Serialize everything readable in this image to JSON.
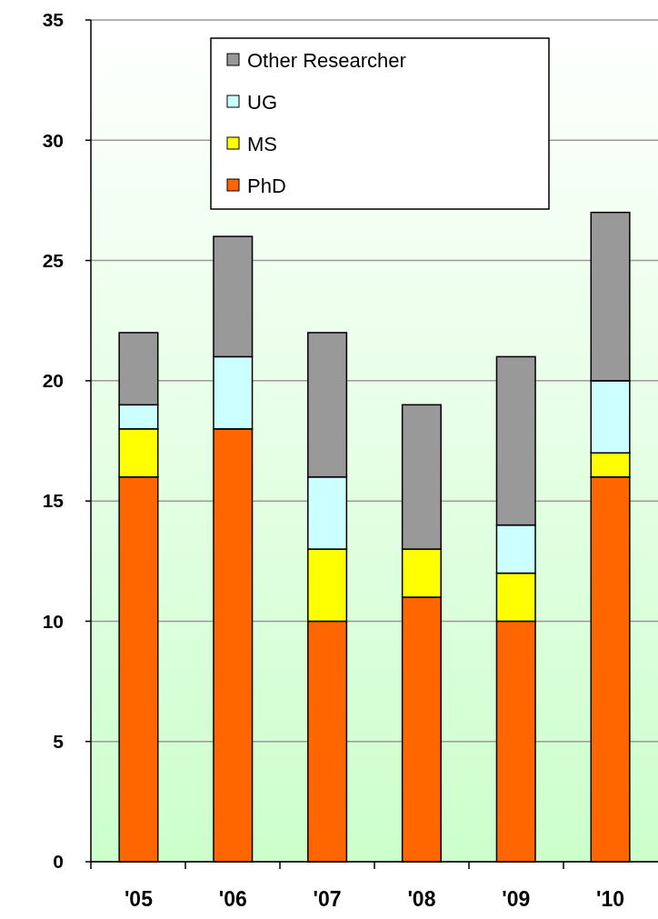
{
  "chart_data": {
    "type": "bar",
    "stacked": true,
    "categories": [
      "'05",
      "'06",
      "'07",
      "'08",
      "'09",
      "'10"
    ],
    "series": [
      {
        "name": "PhD",
        "color": "#ff6600",
        "values": [
          16,
          18,
          10,
          11,
          10,
          16
        ]
      },
      {
        "name": "MS",
        "color": "#ffff00",
        "values": [
          2,
          0,
          3,
          2,
          2,
          1
        ]
      },
      {
        "name": "UG",
        "color": "#ccffff",
        "values": [
          1,
          3,
          3,
          0,
          2,
          3
        ]
      },
      {
        "name": "Other Researcher",
        "color": "#999999",
        "values": [
          3,
          5,
          6,
          6,
          7,
          7
        ]
      }
    ],
    "ylim": [
      0,
      35
    ],
    "yticks": [
      0,
      5,
      10,
      15,
      20,
      25,
      30,
      35
    ],
    "grid": "y",
    "legend": "top"
  }
}
